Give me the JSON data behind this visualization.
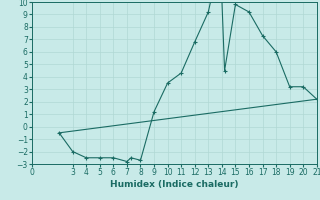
{
  "title": "",
  "xlabel": "Humidex (Indice chaleur)",
  "background_color": "#c8eae8",
  "line_color": "#1a6b63",
  "grid_color": "#b0d8d4",
  "xlim": [
    0,
    21
  ],
  "ylim": [
    -3,
    10
  ],
  "xticks": [
    0,
    3,
    4,
    5,
    6,
    7,
    8,
    9,
    10,
    11,
    12,
    13,
    14,
    15,
    16,
    17,
    18,
    19,
    20,
    21
  ],
  "yticks": [
    -3,
    -2,
    -1,
    0,
    1,
    2,
    3,
    4,
    5,
    6,
    7,
    8,
    9,
    10
  ],
  "curve1_x": [
    2,
    3,
    4,
    5,
    6,
    7,
    7.3,
    8,
    9,
    10,
    11,
    12,
    13,
    13.2,
    14,
    14.2,
    15,
    16,
    17,
    18,
    19,
    20,
    21
  ],
  "curve1_y": [
    -0.5,
    -2,
    -2.5,
    -2.5,
    -2.5,
    -2.8,
    -2.5,
    -2.7,
    1.2,
    3.5,
    4.3,
    6.8,
    9.2,
    10.2,
    10.2,
    4.5,
    9.8,
    9.2,
    7.3,
    6.0,
    3.2,
    3.2,
    2.2
  ],
  "curve2_x": [
    2,
    21
  ],
  "curve2_y": [
    -0.5,
    2.2
  ],
  "tick_fontsize": 5.5,
  "xlabel_fontsize": 6.5
}
